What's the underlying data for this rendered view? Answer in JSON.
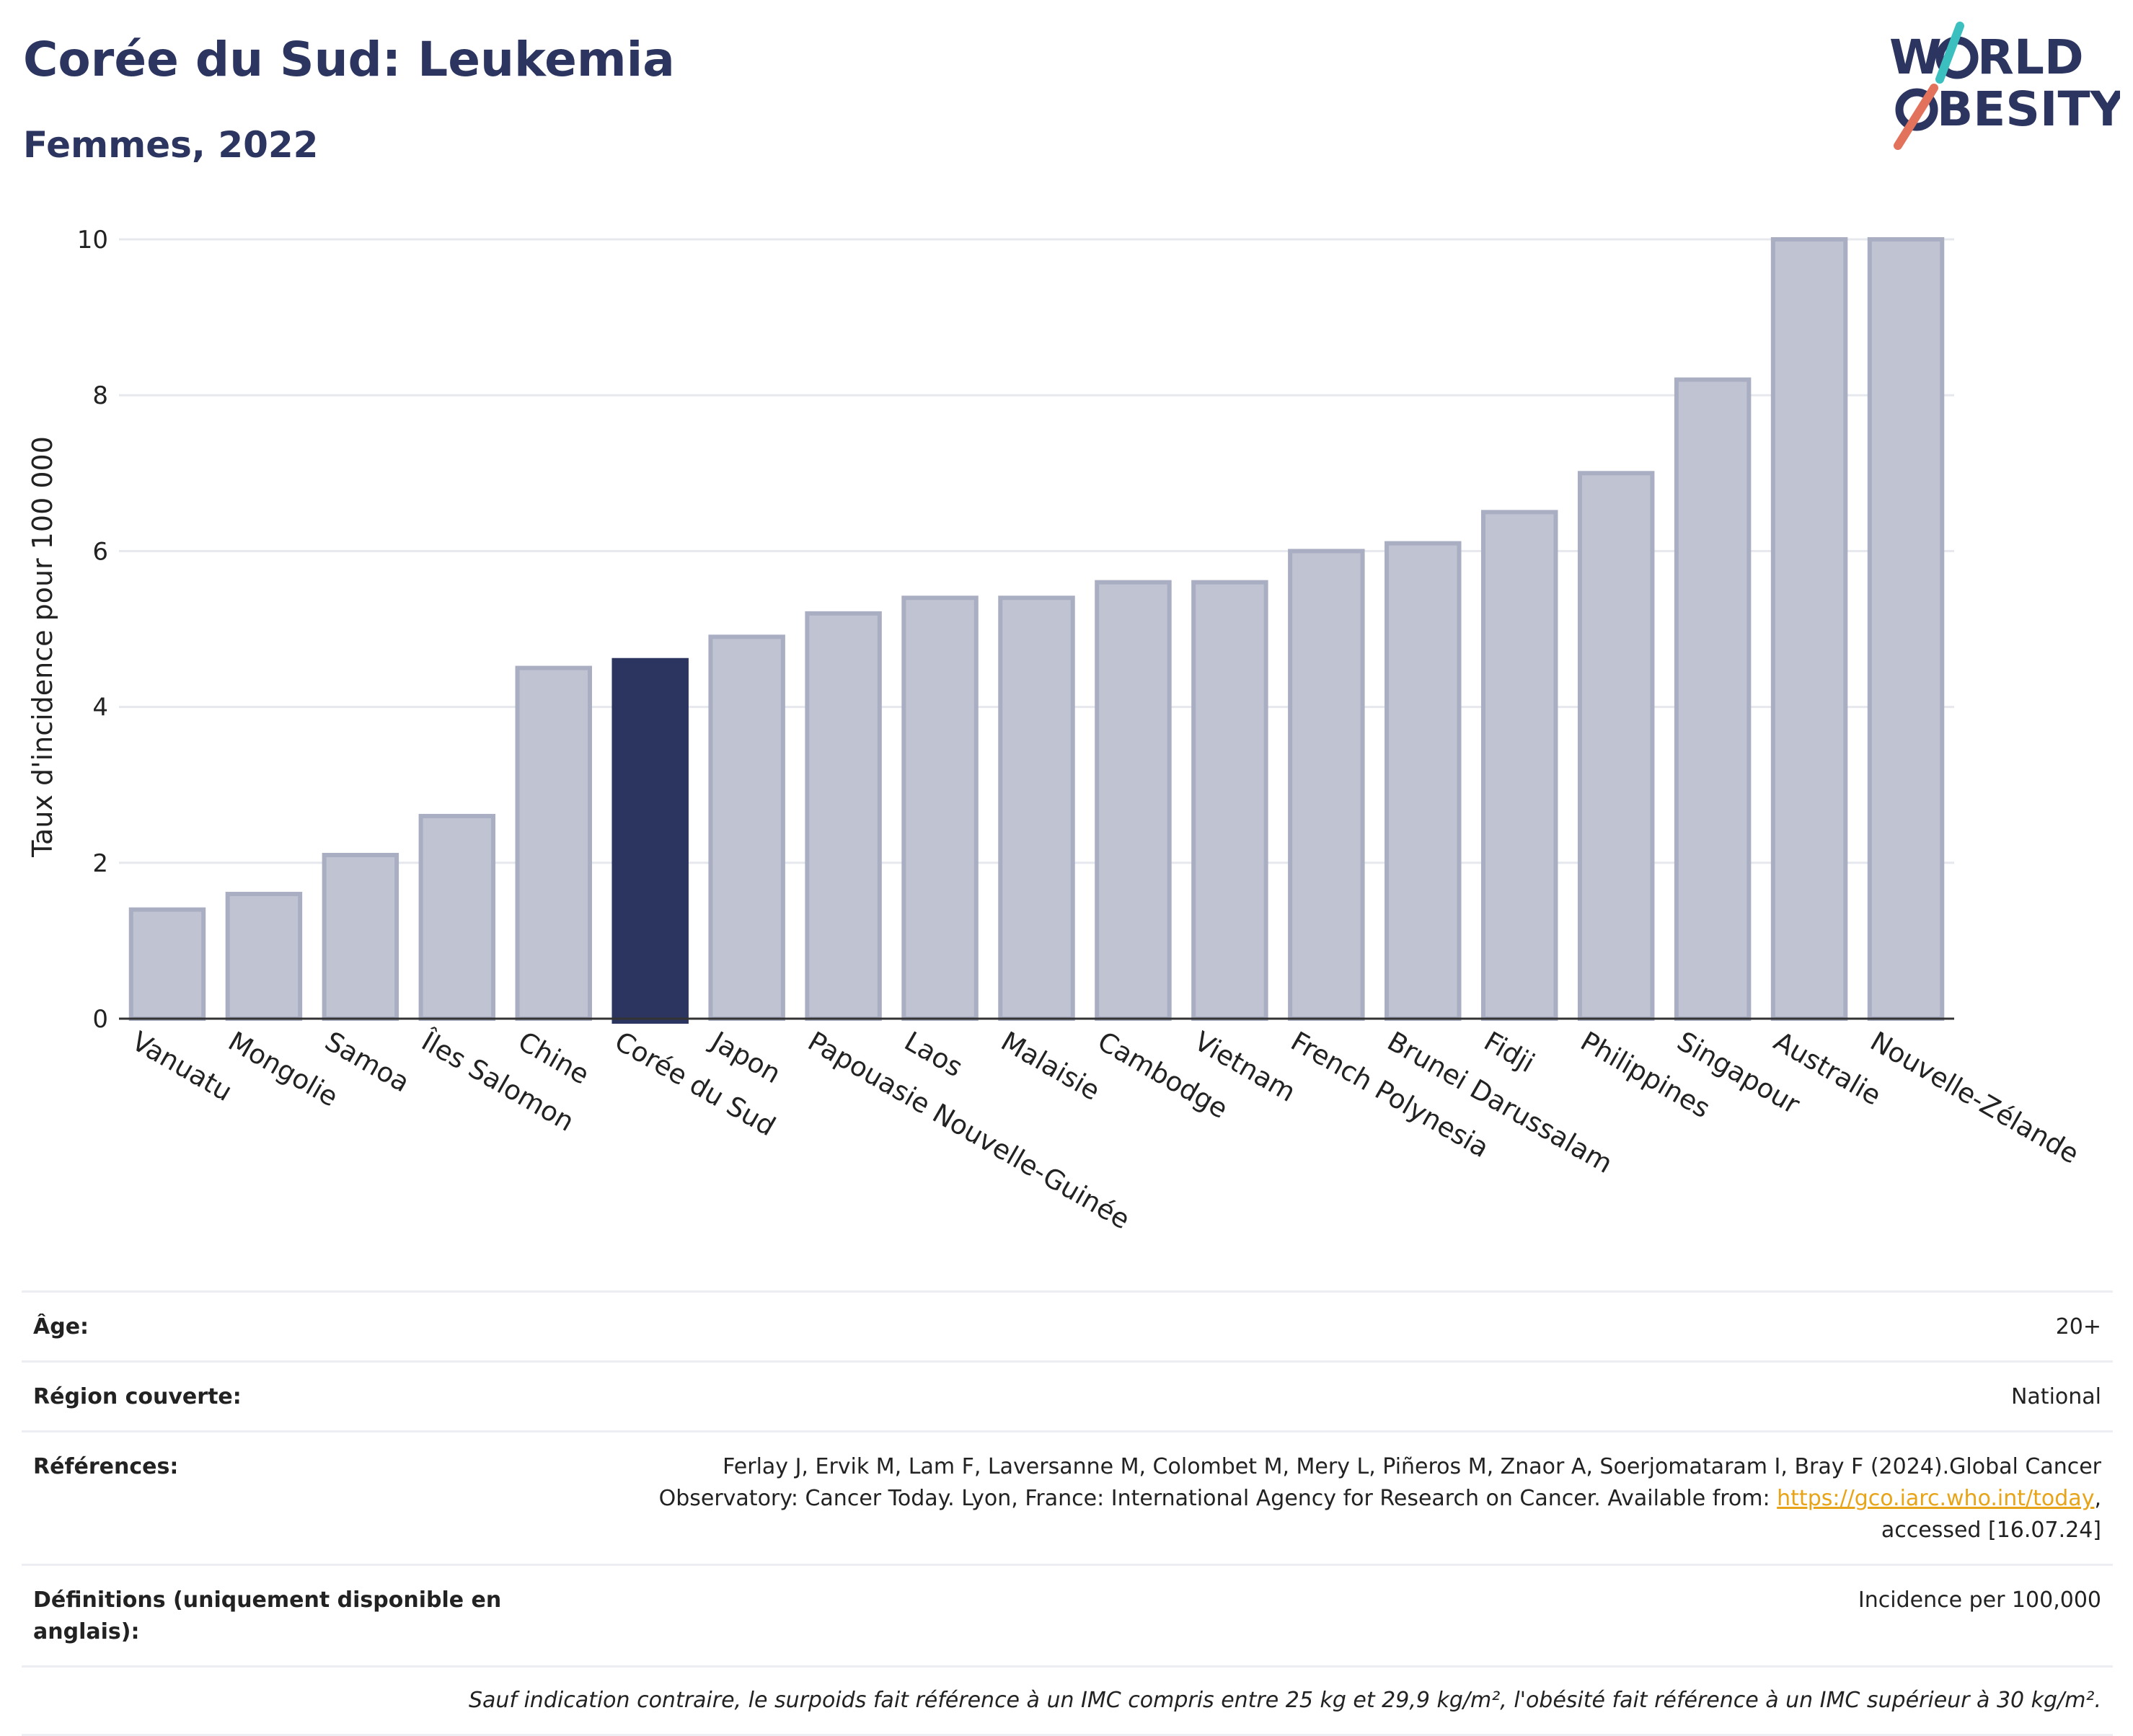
{
  "title": "Corée du Sud: Leukemia",
  "subtitle": "Femmes, 2022",
  "logo": {
    "line1_a": "W",
    "line1_b": "RLD",
    "line2_a": "",
    "line2_b": "BESITY",
    "accent": "#e2725b",
    "accent2": "#3bbfbf",
    "color": "#2b3560"
  },
  "chart_data": {
    "type": "bar",
    "ylabel": "Taux d'incidence pour 100 000",
    "ylim": [
      0,
      10
    ],
    "yticks": [
      0,
      2,
      4,
      6,
      8,
      10
    ],
    "grid": true,
    "highlight": "Corée du Sud",
    "highlight_color": "#2b3560",
    "bar_color": "#c0c3d1",
    "bar_edge_color": "#a9aec2",
    "categories": [
      "Vanuatu",
      "Mongolie",
      "Samoa",
      "Îles Salomon",
      "Chine",
      "Corée du Sud",
      "Japon",
      "Papouasie Nouvelle-Guinée",
      "Laos",
      "Malaisie",
      "Cambodge",
      "Vietnam",
      "French Polynesia",
      "Brunei Darussalam",
      "Fidji",
      "Philippines",
      "Singapour",
      "Australie",
      "Nouvelle-Zélande"
    ],
    "values": [
      1.4,
      1.6,
      2.1,
      2.6,
      4.5,
      4.6,
      4.9,
      5.2,
      5.4,
      5.4,
      5.6,
      5.6,
      6.0,
      6.1,
      6.5,
      7.0,
      8.2,
      10.0,
      10.0
    ]
  },
  "info": {
    "age_label": "Âge:",
    "age_value": "20+",
    "region_label": "Région couverte:",
    "region_value": "National",
    "ref_label": "Références:",
    "ref_text_1": "Ferlay J, Ervik M, Lam F, Laversanne M, Colombet M, Mery L, Piñeros M, Znaor A, Soerjomataram I, Bray F (2024).Global Cancer",
    "ref_text_2": "Observatory: Cancer Today. Lyon, France: International Agency for Research on Cancer. Available from:",
    "ref_link": "https://gco.iarc.who.int/today",
    "ref_text_3": "accessed [16.07.24]",
    "def_label": "Définitions (uniquement disponible en anglais):",
    "def_value": "Incidence per 100,000",
    "note": "Sauf indication contraire, le surpoids fait référence à un IMC compris entre 25 kg et 29,9 kg/m², l'obésité fait référence à un IMC supérieur à 30 kg/m²."
  }
}
